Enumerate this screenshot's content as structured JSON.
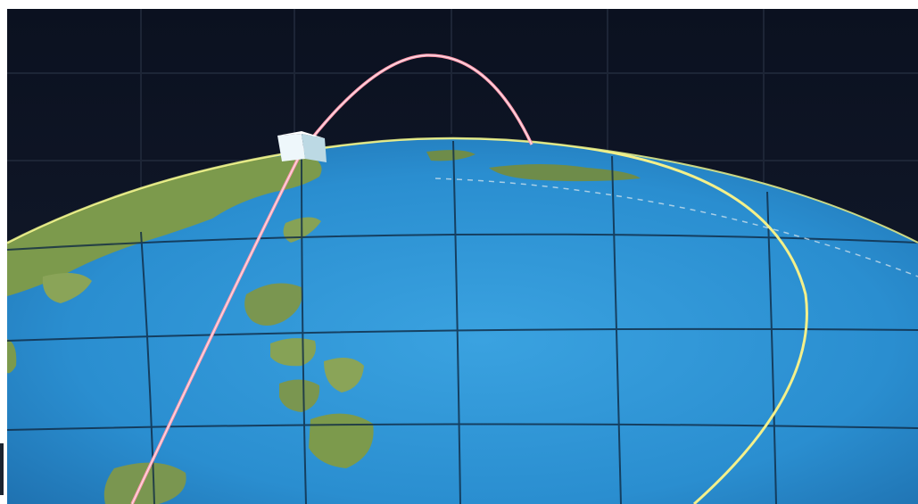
{
  "scene": {
    "icons": {
      "globe": "globe-icon",
      "satellite": "satellite-icon"
    },
    "colors": {
      "space": "#0d1422",
      "video_wall_grid": "#1b2233",
      "ocean": "#2a8ed0",
      "ocean_dark": "#1e6fae",
      "land": "#7e9a4e",
      "land_dark": "#4f6e34",
      "graticule": "#0f2740",
      "orbit_pink": "#ff9aae",
      "ground_track_yellow": "#f4f08a",
      "satellite_body": "#d8eef6"
    }
  }
}
